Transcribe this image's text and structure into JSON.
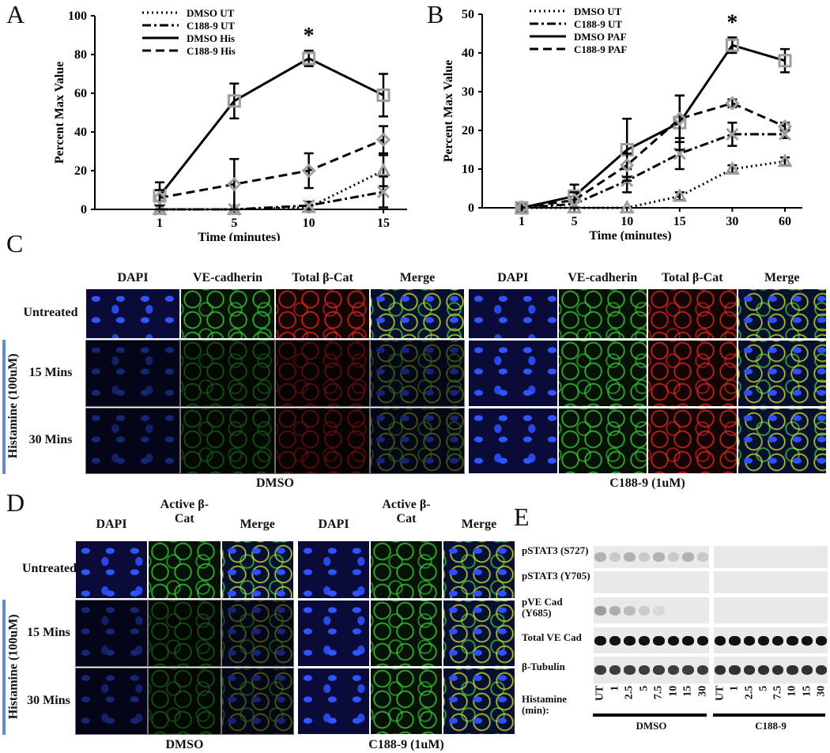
{
  "panel_labels": [
    "A",
    "B",
    "C",
    "D",
    "E"
  ],
  "chart_data": [
    {
      "type": "line",
      "y_label": "Percent Max Value",
      "x_label": "Time (minutes)",
      "categories": [
        "1",
        "5",
        "10",
        "15"
      ],
      "ylim": [
        0,
        100
      ],
      "yticks": [
        0,
        20,
        40,
        60,
        80,
        100
      ],
      "annotation": "*",
      "legend": "upper left",
      "marker_color": "#9e9e9e",
      "series": [
        {
          "name": "DMSO UT",
          "color": "#000000",
          "line_style": "dotted",
          "marker": "triangle",
          "values": [
            0,
            0,
            1,
            20
          ],
          "errors": [
            0,
            0,
            1,
            8
          ]
        },
        {
          "name": "C188-9 UT",
          "color": "#000000",
          "line_style": "dashdot",
          "marker": "x",
          "values": [
            0,
            0,
            2,
            9
          ],
          "errors": [
            0,
            0,
            2,
            8
          ]
        },
        {
          "name": "DMSO His",
          "color": "#000000",
          "line_style": "solid",
          "marker": "square",
          "values": [
            7,
            56,
            78,
            59
          ],
          "errors": [
            7,
            9,
            4,
            11
          ]
        },
        {
          "name": "C188-9 His",
          "color": "#000000",
          "line_style": "dashed",
          "marker": "diamond",
          "values": [
            6,
            13,
            20,
            36
          ],
          "errors": [
            4,
            13,
            9,
            7
          ]
        }
      ]
    },
    {
      "type": "line",
      "y_label": "Percent Max Value",
      "x_label": "Time (minutes)",
      "categories": [
        "1",
        "5",
        "10",
        "15",
        "30",
        "60"
      ],
      "ylim": [
        0,
        50
      ],
      "yticks": [
        0,
        10,
        20,
        30,
        40,
        50
      ],
      "annotation": "*",
      "legend": "upper left",
      "marker_color": "#9e9e9e",
      "series": [
        {
          "name": "DMSO UT",
          "color": "#000000",
          "line_style": "dotted",
          "marker": "triangle",
          "values": [
            0,
            0,
            0,
            3,
            10,
            12
          ],
          "errors": [
            0,
            0,
            0,
            1,
            1,
            1
          ]
        },
        {
          "name": "C188-9 UT",
          "color": "#000000",
          "line_style": "dashdot",
          "marker": "x",
          "values": [
            0,
            1,
            7,
            14,
            19,
            19
          ],
          "errors": [
            0,
            1,
            3,
            4,
            3,
            1
          ]
        },
        {
          "name": "DMSO PAF",
          "color": "#000000",
          "line_style": "solid",
          "marker": "square",
          "values": [
            0,
            3,
            15,
            22,
            42,
            38
          ],
          "errors": [
            1,
            3,
            8,
            7,
            2,
            3
          ]
        },
        {
          "name": "C188-9 PAF",
          "color": "#000000",
          "line_style": "dashed",
          "marker": "diamond",
          "values": [
            0,
            2,
            11,
            23,
            27,
            21
          ],
          "errors": [
            0,
            2,
            3,
            6,
            1,
            1
          ]
        }
      ]
    }
  ],
  "panel_c": {
    "columns": [
      "DAPI",
      "VE-cadherin",
      "Total β-Cat",
      "Merge"
    ],
    "rows": [
      "Untreated",
      "15 Mins",
      "30 Mins"
    ],
    "treatment": "Histamine (100uM)",
    "groups": [
      "DMSO",
      "C188-9 (1uM)"
    ]
  },
  "panel_d": {
    "columns": [
      "DAPI",
      "Active β-Cat",
      "Merge"
    ],
    "rows": [
      "Untreated",
      "15 Mins",
      "30 Mins"
    ],
    "treatment": "Histamine (100uM)",
    "groups": [
      "DMSO",
      "C188-9 (1uM)"
    ]
  },
  "panel_e": {
    "rows": [
      "pSTAT3 (S727)",
      "pSTAT3 (Y705)",
      "pVE Cad (Y685)",
      "Total VE Cad",
      "β-Tubulin"
    ],
    "x_label": "Histamine (min):",
    "lanes": [
      "UT",
      "1",
      "2.5",
      "5",
      "7.5",
      "10",
      "15",
      "30"
    ],
    "groups": [
      "DMSO",
      "C188-9"
    ]
  }
}
